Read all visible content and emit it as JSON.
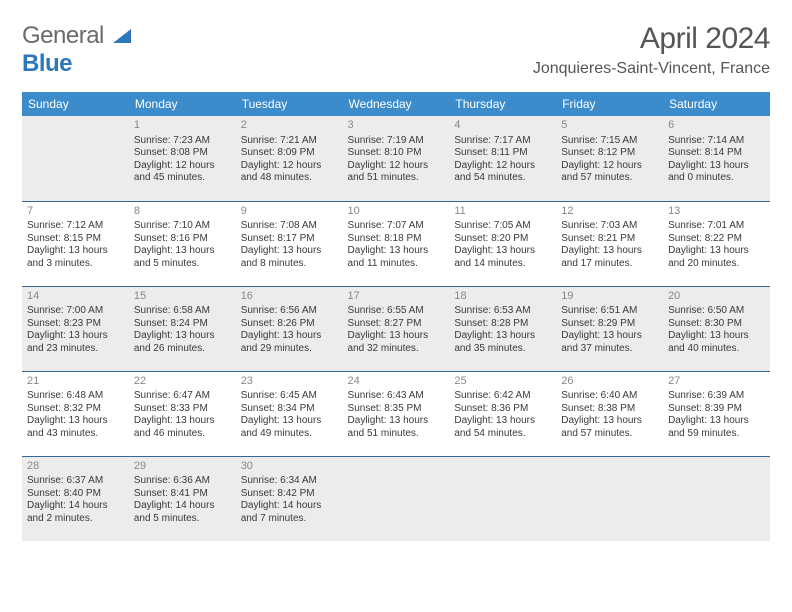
{
  "logo": {
    "text1": "General",
    "text2": "Blue"
  },
  "title": "April 2024",
  "location": "Jonquieres-Saint-Vincent, France",
  "weekdays": [
    "Sunday",
    "Monday",
    "Tuesday",
    "Wednesday",
    "Thursday",
    "Friday",
    "Saturday"
  ],
  "colors": {
    "headerBg": "#3c8ccc",
    "shadedBg": "#ececec",
    "rowDivider": "#336699",
    "titleColor": "#555555",
    "bodyText": "#3a3a3a",
    "dayNum": "#888888",
    "logoBlue": "#2d77bb"
  },
  "weeks": [
    [
      {
        "day": "",
        "shaded": true
      },
      {
        "day": "1",
        "shaded": true,
        "sunrise": "Sunrise: 7:23 AM",
        "sunset": "Sunset: 8:08 PM",
        "daylight": "Daylight: 12 hours and 45 minutes."
      },
      {
        "day": "2",
        "shaded": true,
        "sunrise": "Sunrise: 7:21 AM",
        "sunset": "Sunset: 8:09 PM",
        "daylight": "Daylight: 12 hours and 48 minutes."
      },
      {
        "day": "3",
        "shaded": true,
        "sunrise": "Sunrise: 7:19 AM",
        "sunset": "Sunset: 8:10 PM",
        "daylight": "Daylight: 12 hours and 51 minutes."
      },
      {
        "day": "4",
        "shaded": true,
        "sunrise": "Sunrise: 7:17 AM",
        "sunset": "Sunset: 8:11 PM",
        "daylight": "Daylight: 12 hours and 54 minutes."
      },
      {
        "day": "5",
        "shaded": true,
        "sunrise": "Sunrise: 7:15 AM",
        "sunset": "Sunset: 8:12 PM",
        "daylight": "Daylight: 12 hours and 57 minutes."
      },
      {
        "day": "6",
        "shaded": true,
        "sunrise": "Sunrise: 7:14 AM",
        "sunset": "Sunset: 8:14 PM",
        "daylight": "Daylight: 13 hours and 0 minutes."
      }
    ],
    [
      {
        "day": "7",
        "sunrise": "Sunrise: 7:12 AM",
        "sunset": "Sunset: 8:15 PM",
        "daylight": "Daylight: 13 hours and 3 minutes."
      },
      {
        "day": "8",
        "sunrise": "Sunrise: 7:10 AM",
        "sunset": "Sunset: 8:16 PM",
        "daylight": "Daylight: 13 hours and 5 minutes."
      },
      {
        "day": "9",
        "sunrise": "Sunrise: 7:08 AM",
        "sunset": "Sunset: 8:17 PM",
        "daylight": "Daylight: 13 hours and 8 minutes."
      },
      {
        "day": "10",
        "sunrise": "Sunrise: 7:07 AM",
        "sunset": "Sunset: 8:18 PM",
        "daylight": "Daylight: 13 hours and 11 minutes."
      },
      {
        "day": "11",
        "sunrise": "Sunrise: 7:05 AM",
        "sunset": "Sunset: 8:20 PM",
        "daylight": "Daylight: 13 hours and 14 minutes."
      },
      {
        "day": "12",
        "sunrise": "Sunrise: 7:03 AM",
        "sunset": "Sunset: 8:21 PM",
        "daylight": "Daylight: 13 hours and 17 minutes."
      },
      {
        "day": "13",
        "sunrise": "Sunrise: 7:01 AM",
        "sunset": "Sunset: 8:22 PM",
        "daylight": "Daylight: 13 hours and 20 minutes."
      }
    ],
    [
      {
        "day": "14",
        "shaded": true,
        "sunrise": "Sunrise: 7:00 AM",
        "sunset": "Sunset: 8:23 PM",
        "daylight": "Daylight: 13 hours and 23 minutes."
      },
      {
        "day": "15",
        "shaded": true,
        "sunrise": "Sunrise: 6:58 AM",
        "sunset": "Sunset: 8:24 PM",
        "daylight": "Daylight: 13 hours and 26 minutes."
      },
      {
        "day": "16",
        "shaded": true,
        "sunrise": "Sunrise: 6:56 AM",
        "sunset": "Sunset: 8:26 PM",
        "daylight": "Daylight: 13 hours and 29 minutes."
      },
      {
        "day": "17",
        "shaded": true,
        "sunrise": "Sunrise: 6:55 AM",
        "sunset": "Sunset: 8:27 PM",
        "daylight": "Daylight: 13 hours and 32 minutes."
      },
      {
        "day": "18",
        "shaded": true,
        "sunrise": "Sunrise: 6:53 AM",
        "sunset": "Sunset: 8:28 PM",
        "daylight": "Daylight: 13 hours and 35 minutes."
      },
      {
        "day": "19",
        "shaded": true,
        "sunrise": "Sunrise: 6:51 AM",
        "sunset": "Sunset: 8:29 PM",
        "daylight": "Daylight: 13 hours and 37 minutes."
      },
      {
        "day": "20",
        "shaded": true,
        "sunrise": "Sunrise: 6:50 AM",
        "sunset": "Sunset: 8:30 PM",
        "daylight": "Daylight: 13 hours and 40 minutes."
      }
    ],
    [
      {
        "day": "21",
        "sunrise": "Sunrise: 6:48 AM",
        "sunset": "Sunset: 8:32 PM",
        "daylight": "Daylight: 13 hours and 43 minutes."
      },
      {
        "day": "22",
        "sunrise": "Sunrise: 6:47 AM",
        "sunset": "Sunset: 8:33 PM",
        "daylight": "Daylight: 13 hours and 46 minutes."
      },
      {
        "day": "23",
        "sunrise": "Sunrise: 6:45 AM",
        "sunset": "Sunset: 8:34 PM",
        "daylight": "Daylight: 13 hours and 49 minutes."
      },
      {
        "day": "24",
        "sunrise": "Sunrise: 6:43 AM",
        "sunset": "Sunset: 8:35 PM",
        "daylight": "Daylight: 13 hours and 51 minutes."
      },
      {
        "day": "25",
        "sunrise": "Sunrise: 6:42 AM",
        "sunset": "Sunset: 8:36 PM",
        "daylight": "Daylight: 13 hours and 54 minutes."
      },
      {
        "day": "26",
        "sunrise": "Sunrise: 6:40 AM",
        "sunset": "Sunset: 8:38 PM",
        "daylight": "Daylight: 13 hours and 57 minutes."
      },
      {
        "day": "27",
        "sunrise": "Sunrise: 6:39 AM",
        "sunset": "Sunset: 8:39 PM",
        "daylight": "Daylight: 13 hours and 59 minutes."
      }
    ],
    [
      {
        "day": "28",
        "shaded": true,
        "sunrise": "Sunrise: 6:37 AM",
        "sunset": "Sunset: 8:40 PM",
        "daylight": "Daylight: 14 hours and 2 minutes."
      },
      {
        "day": "29",
        "shaded": true,
        "sunrise": "Sunrise: 6:36 AM",
        "sunset": "Sunset: 8:41 PM",
        "daylight": "Daylight: 14 hours and 5 minutes."
      },
      {
        "day": "30",
        "shaded": true,
        "sunrise": "Sunrise: 6:34 AM",
        "sunset": "Sunset: 8:42 PM",
        "daylight": "Daylight: 14 hours and 7 minutes."
      },
      {
        "day": "",
        "shaded": true
      },
      {
        "day": "",
        "shaded": true
      },
      {
        "day": "",
        "shaded": true
      },
      {
        "day": "",
        "shaded": true
      }
    ]
  ]
}
